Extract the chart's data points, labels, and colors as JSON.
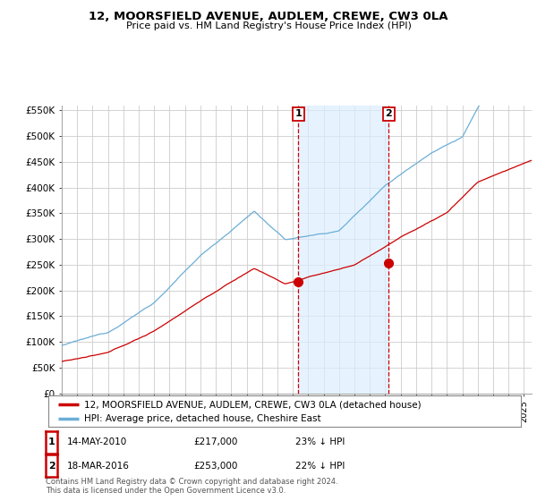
{
  "title": "12, MOORSFIELD AVENUE, AUDLEM, CREWE, CW3 0LA",
  "subtitle": "Price paid vs. HM Land Registry's House Price Index (HPI)",
  "ylabel_ticks": [
    "£0",
    "£50K",
    "£100K",
    "£150K",
    "£200K",
    "£250K",
    "£300K",
    "£350K",
    "£400K",
    "£450K",
    "£500K",
    "£550K"
  ],
  "ytick_values": [
    0,
    50000,
    100000,
    150000,
    200000,
    250000,
    300000,
    350000,
    400000,
    450000,
    500000,
    550000
  ],
  "hpi_color": "#6baed6",
  "price_color": "#cc0000",
  "marker1_price": 217000,
  "marker2_price": 253000,
  "pt1_year": 2010.364,
  "pt2_year": 2016.214,
  "legend_line1": "12, MOORSFIELD AVENUE, AUDLEM, CREWE, CW3 0LA (detached house)",
  "legend_line2": "HPI: Average price, detached house, Cheshire East",
  "table_row1": [
    "1",
    "14-MAY-2010",
    "£217,000",
    "23% ↓ HPI"
  ],
  "table_row2": [
    "2",
    "18-MAR-2016",
    "£253,000",
    "22% ↓ HPI"
  ],
  "footnote": "Contains HM Land Registry data © Crown copyright and database right 2024.\nThis data is licensed under the Open Government Licence v3.0.",
  "bg_color": "#ffffff",
  "grid_color": "#cccccc",
  "shade_color": "#dceeff",
  "xmin": 1995,
  "xmax": 2025.5,
  "ymin": 0,
  "ymax": 560000
}
